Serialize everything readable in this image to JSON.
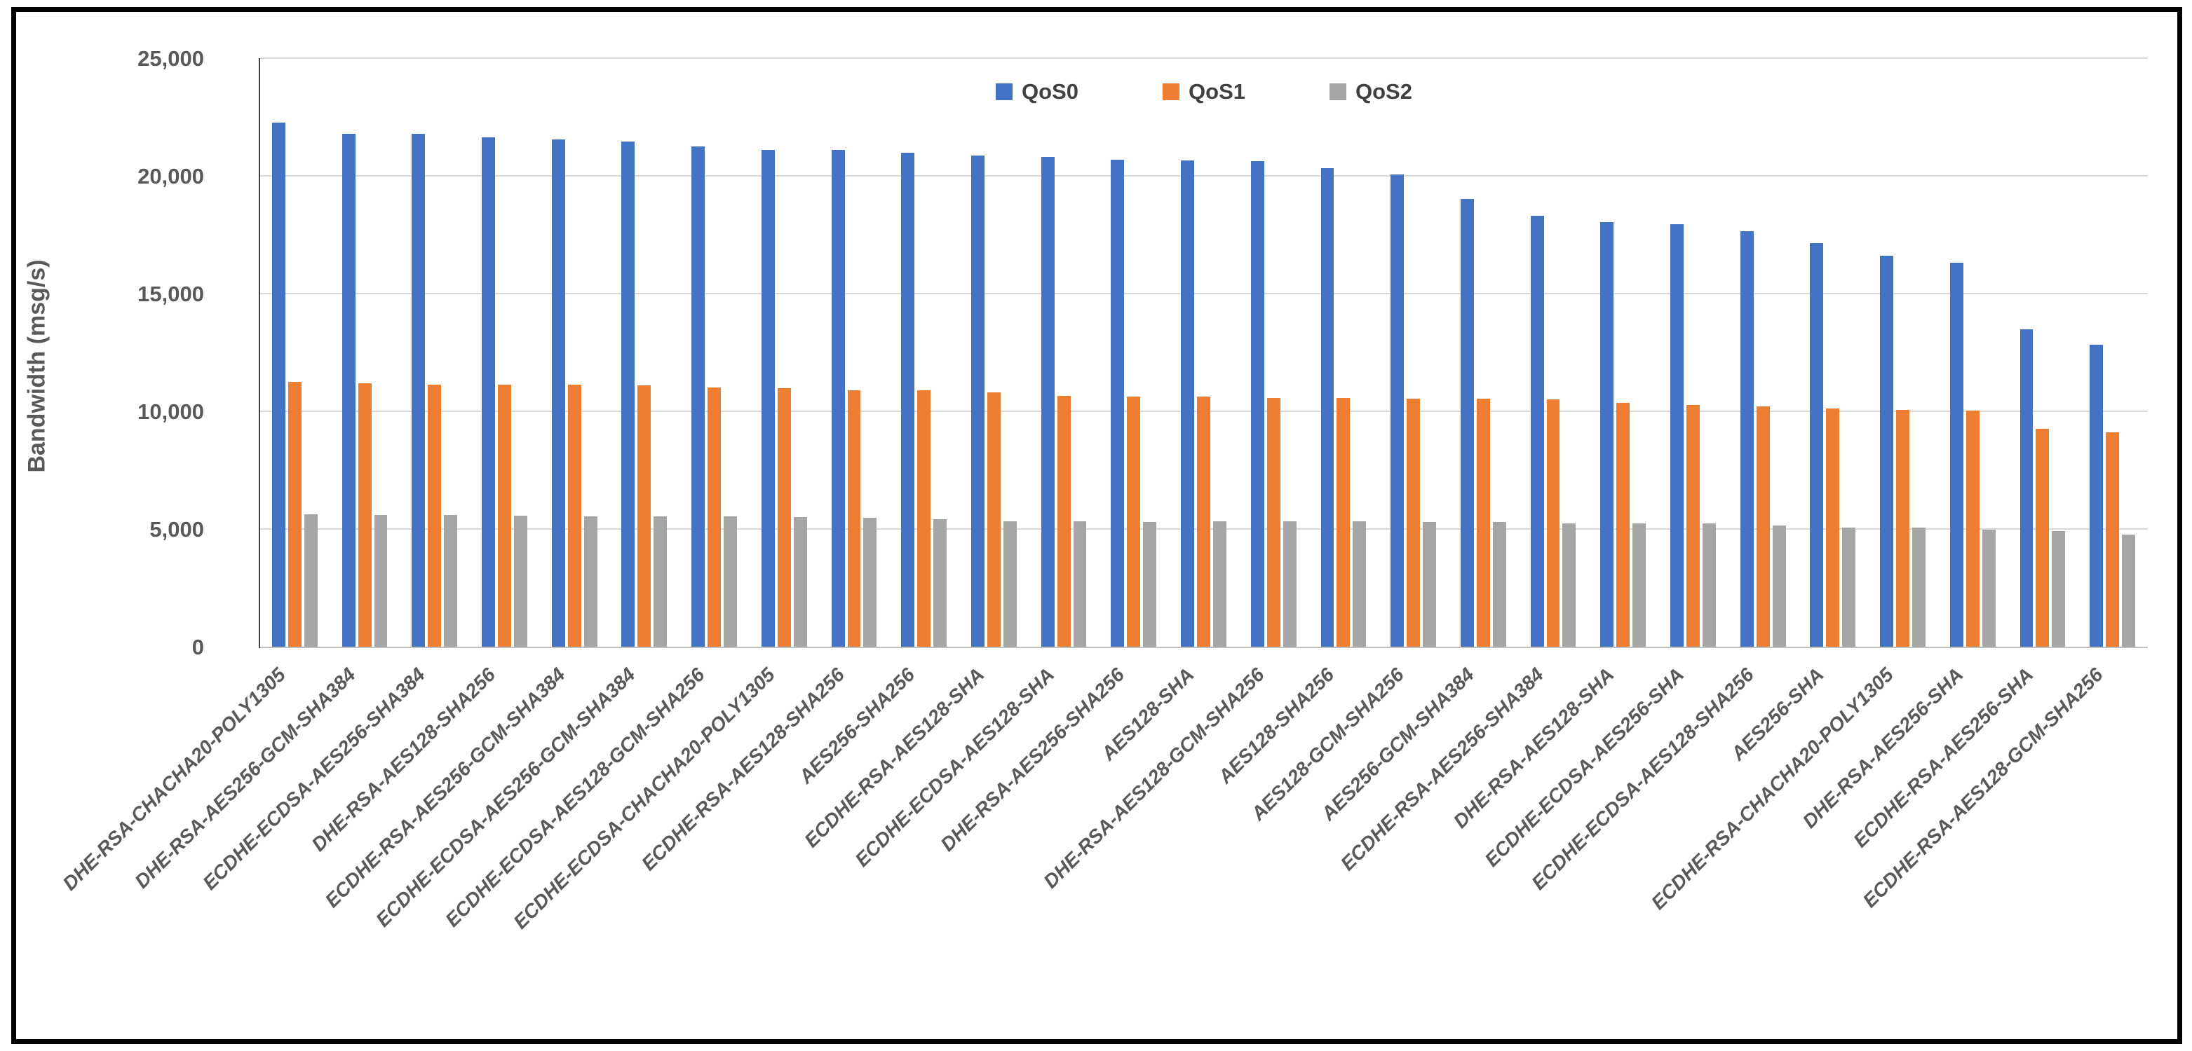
{
  "figure": {
    "y_axis_title": "Bandwidth (msg/s)"
  },
  "chart_data": {
    "type": "bar",
    "title": "",
    "xlabel": "",
    "ylabel": "Bandwidth (msg/s)",
    "ylim": [
      0,
      25000
    ],
    "ytick_interval": 5000,
    "ytick_labels": [
      "0",
      "5,000",
      "10,000",
      "15,000",
      "20,000",
      "25,000"
    ],
    "grid": true,
    "legend_position": "top-center",
    "categories": [
      "DHE-RSA-CHACHA20-POLY1305",
      "DHE-RSA-AES256-GCM-SHA384",
      "ECDHE-ECDSA-AES256-SHA384",
      "DHE-RSA-AES128-SHA256",
      "ECDHE-RSA-AES256-GCM-SHA384",
      "ECDHE-ECDSA-AES256-GCM-SHA384",
      "ECDHE-ECDSA-AES128-GCM-SHA256",
      "ECDHE-ECDSA-CHACHA20-POLY1305",
      "ECDHE-RSA-AES128-SHA256",
      "AES256-SHA256",
      "ECDHE-RSA-AES128-SHA",
      "ECDHE-ECDSA-AES128-SHA",
      "DHE-RSA-AES256-SHA256",
      "AES128-SHA",
      "DHE-RSA-AES128-GCM-SHA256",
      "AES128-SHA256",
      "AES128-GCM-SHA256",
      "AES256-GCM-SHA384",
      "ECDHE-RSA-AES256-SHA384",
      "DHE-RSA-AES128-SHA",
      "ECDHE-ECDSA-AES256-SHA",
      "ECDHE-ECDSA-AES128-SHA256",
      "AES256-SHA",
      "ECDHE-RSA-CHACHA20-POLY1305",
      "DHE-RSA-AES256-SHA",
      "ECDHE-RSA-AES256-SHA",
      "ECDHE-RSA-AES128-GCM-SHA256"
    ],
    "series": [
      {
        "name": "QoS0",
        "color": "#4472C4",
        "values": [
          22250,
          21800,
          21780,
          21650,
          21550,
          21470,
          21260,
          21100,
          21090,
          20990,
          20850,
          20800,
          20690,
          20670,
          20640,
          20320,
          20050,
          19020,
          18300,
          18050,
          17960,
          17650,
          17130,
          16600,
          16300,
          13480,
          12820
        ]
      },
      {
        "name": "QoS1",
        "color": "#ED7D31",
        "values": [
          11240,
          11190,
          11140,
          11120,
          11120,
          11090,
          11020,
          10970,
          10890,
          10890,
          10790,
          10670,
          10640,
          10640,
          10570,
          10570,
          10550,
          10550,
          10510,
          10370,
          10260,
          10200,
          10110,
          10060,
          10040,
          9260,
          9110
        ]
      },
      {
        "name": "QoS2",
        "color": "#A5A5A5",
        "values": [
          5620,
          5610,
          5590,
          5560,
          5550,
          5530,
          5530,
          5510,
          5480,
          5410,
          5340,
          5330,
          5300,
          5330,
          5320,
          5320,
          5300,
          5290,
          5250,
          5230,
          5230,
          5150,
          5070,
          5050,
          4960,
          4920,
          4760
        ]
      }
    ]
  }
}
